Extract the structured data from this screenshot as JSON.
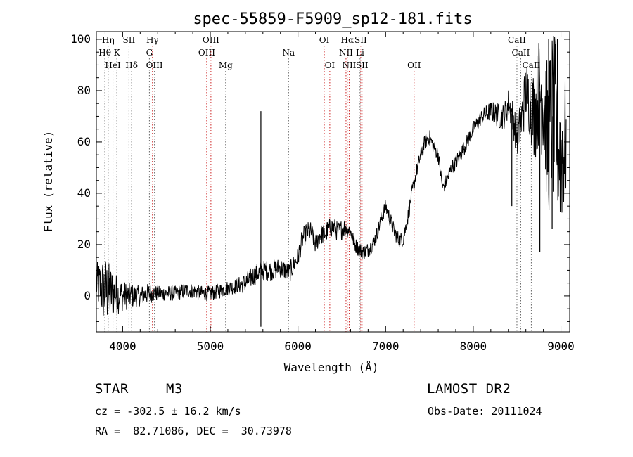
{
  "chart_data": {
    "type": "line",
    "title": "spec-55859-F5909_sp12-181.fits",
    "xlabel": "Wavelength (Å)",
    "ylabel": "Flux (relative)",
    "xlim": [
      3700,
      9100
    ],
    "ylim": [
      -14,
      103
    ],
    "x_ticks": [
      4000,
      5000,
      6000,
      7000,
      8000,
      9000
    ],
    "y_ticks": [
      0,
      20,
      40,
      60,
      80,
      100
    ],
    "grid": false,
    "line_color": "#000000",
    "marker_color": "#cc2222",
    "spectral_lines": [
      {
        "label": "Hη",
        "wavelength": 3835,
        "row": 0,
        "style": "dotted"
      },
      {
        "label": "Hθ",
        "wavelength": 3797,
        "row": 1,
        "style": "dotted"
      },
      {
        "label": "K",
        "wavelength": 3934,
        "row": 1,
        "style": "dotted"
      },
      {
        "label": "HeI",
        "wavelength": 3889,
        "row": 2,
        "style": "dotted"
      },
      {
        "label": "SII",
        "wavelength": 4072,
        "row": 0,
        "style": "dotted"
      },
      {
        "label": "Hδ",
        "wavelength": 4102,
        "row": 2,
        "style": "dotted"
      },
      {
        "label": "Hγ",
        "wavelength": 4340,
        "row": 0,
        "style": "red"
      },
      {
        "label": "G",
        "wavelength": 4305,
        "row": 1,
        "style": "dotted"
      },
      {
        "label": "OIII",
        "wavelength": 4363,
        "row": 2,
        "style": "dotted"
      },
      {
        "label": "OIII",
        "wavelength": 5007,
        "row": 0,
        "style": "red"
      },
      {
        "label": "OIII",
        "wavelength": 4959,
        "row": 1,
        "style": "red"
      },
      {
        "label": "Mg",
        "wavelength": 5175,
        "row": 2,
        "style": "dotted"
      },
      {
        "label": "Na",
        "wavelength": 5893,
        "row": 1,
        "style": "dotted"
      },
      {
        "label": "OI",
        "wavelength": 6300,
        "row": 0,
        "style": "red"
      },
      {
        "label": "OI",
        "wavelength": 6363,
        "row": 2,
        "style": "red"
      },
      {
        "label": "Hα",
        "wavelength": 6563,
        "row": 0,
        "style": "red"
      },
      {
        "label": "SII",
        "wavelength": 6716,
        "row": 0,
        "style": "red"
      },
      {
        "label": "NII",
        "wavelength": 6548,
        "row": 1,
        "style": "red"
      },
      {
        "label": "Li",
        "wavelength": 6708,
        "row": 1,
        "style": "dotted"
      },
      {
        "label": "NII",
        "wavelength": 6584,
        "row": 2,
        "style": "red"
      },
      {
        "label": "SII",
        "wavelength": 6731,
        "row": 2,
        "style": "red"
      },
      {
        "label": "OII",
        "wavelength": 7325,
        "row": 2,
        "style": "red"
      },
      {
        "label": "CaII",
        "wavelength": 8498,
        "row": 0,
        "style": "dotted"
      },
      {
        "label": "CaII",
        "wavelength": 8542,
        "row": 1,
        "style": "dotted"
      },
      {
        "label": "CaII",
        "wavelength": 8662,
        "row": 2,
        "style": "dotted"
      }
    ],
    "spectrum_anchors": {
      "wavelength": [
        3700,
        3760,
        3800,
        3850,
        3900,
        4000,
        4100,
        4200,
        4300,
        4400,
        4500,
        4600,
        4700,
        4800,
        4900,
        5000,
        5100,
        5200,
        5300,
        5400,
        5500,
        5600,
        5700,
        5800,
        5900,
        6000,
        6050,
        6100,
        6150,
        6200,
        6250,
        6300,
        6350,
        6400,
        6450,
        6500,
        6550,
        6600,
        6650,
        6700,
        6750,
        6800,
        6850,
        6900,
        6950,
        7000,
        7050,
        7100,
        7150,
        7200,
        7250,
        7300,
        7350,
        7400,
        7450,
        7500,
        7550,
        7600,
        7650,
        7700,
        7750,
        7800,
        7900,
        8000,
        8100,
        8200,
        8300,
        8350,
        8400,
        8450,
        8500,
        8550,
        8600,
        8650,
        8700,
        8750,
        8800,
        8850,
        8900,
        8950,
        9000,
        9050
      ],
      "flux": [
        5,
        3,
        2,
        1,
        1,
        0,
        0,
        0,
        1,
        1,
        1,
        1,
        2,
        2,
        1,
        1,
        2,
        3,
        4,
        5,
        8,
        10,
        10,
        11,
        9,
        15,
        22,
        25,
        25,
        20,
        24,
        24,
        26,
        27,
        25,
        26,
        27,
        25,
        20,
        18,
        17,
        18,
        20,
        24,
        30,
        35,
        30,
        25,
        22,
        22,
        30,
        40,
        48,
        55,
        60,
        62,
        58,
        55,
        42,
        45,
        50,
        52,
        58,
        65,
        70,
        72,
        70,
        70,
        75,
        70,
        62,
        68,
        80,
        75,
        70,
        80,
        78,
        60,
        70,
        65,
        55,
        60
      ],
      "noise": [
        8,
        12,
        14,
        12,
        9,
        6,
        5,
        4,
        4,
        3,
        3,
        3,
        3,
        3,
        3,
        3,
        3,
        3,
        3,
        4,
        4,
        4,
        4,
        4,
        4,
        4,
        4,
        4,
        4,
        4,
        4,
        4,
        4,
        4,
        4,
        4,
        4,
        3,
        3,
        3,
        3,
        3,
        3,
        3,
        3,
        3,
        3,
        3,
        3,
        3,
        3,
        3,
        3,
        3,
        3,
        3,
        3,
        3,
        3,
        3,
        3,
        3,
        3,
        3,
        3,
        4,
        5,
        5,
        6,
        7,
        8,
        10,
        12,
        14,
        18,
        22,
        26,
        30,
        34,
        34,
        30,
        26
      ]
    },
    "spikes": [
      {
        "wavelength": 5577,
        "value": 72
      },
      {
        "wavelength": 5577,
        "value": -12
      },
      {
        "wavelength": 8440,
        "value": 35
      },
      {
        "wavelength": 8760,
        "value": 17
      },
      {
        "wavelength": 8860,
        "value": 100
      },
      {
        "wavelength": 8900,
        "value": 26
      },
      {
        "wavelength": 8960,
        "value": 100
      }
    ]
  },
  "info": {
    "object_class": "STAR",
    "subclass": "M3",
    "survey": "LAMOST DR2",
    "cz": "cz = -302.5 ± 16.2 km/s",
    "obs_date": "Obs-Date: 20111024",
    "coords": "RA =  82.71086, DEC =  30.73978"
  }
}
